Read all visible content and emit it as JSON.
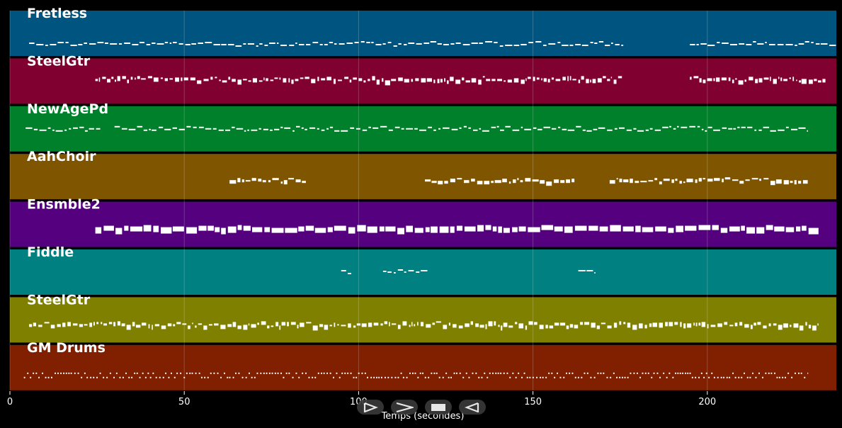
{
  "chart_data": {
    "type": "piano-roll",
    "title": "",
    "xlabel": "Temps (secondes)",
    "ylabel": "",
    "xlim": [
      0,
      237
    ],
    "xticks": [
      0,
      50,
      100,
      150,
      200
    ],
    "grid": true,
    "tracks": [
      {
        "name": "Fretless",
        "color": "#005580",
        "segments": [
          [
            5.5,
            176
          ],
          [
            195,
            228
          ],
          [
            228,
            237
          ]
        ],
        "style": "melody-low"
      },
      {
        "name": "SteelGtr",
        "color": "#80002f",
        "segments": [
          [
            24.5,
            176
          ],
          [
            195,
            227
          ],
          [
            227,
            234
          ]
        ],
        "style": "chords-mid"
      },
      {
        "name": "NewAgePd",
        "color": "#00802a",
        "segments": [
          [
            4.5,
            26
          ],
          [
            30,
            229
          ]
        ],
        "style": "melody-mid"
      },
      {
        "name": "AahChoir",
        "color": "#805500",
        "segments": [
          [
            63,
            85
          ],
          [
            119,
            162
          ],
          [
            172,
            229
          ]
        ],
        "style": "chords-high"
      },
      {
        "name": "Ensmble2",
        "color": "#55007f",
        "segments": [
          [
            24.5,
            232
          ]
        ],
        "style": "thick"
      },
      {
        "name": "Fiddle",
        "color": "#008080",
        "segments": [
          [
            95,
            98
          ],
          [
            107,
            120
          ],
          [
            163,
            168
          ]
        ],
        "style": "fiddle"
      },
      {
        "name": "SteelGtr",
        "color": "#808000",
        "segments": [
          [
            5.5,
            232
          ]
        ],
        "style": "chords-low"
      },
      {
        "name": "GM Drums",
        "color": "#802000",
        "segments": [
          [
            4,
            229
          ]
        ],
        "style": "drums"
      }
    ]
  },
  "controls": [
    {
      "name": "play-button",
      "icon": "play-icon"
    },
    {
      "name": "forward-button",
      "icon": "forward-icon"
    },
    {
      "name": "stop-button",
      "icon": "stop-icon"
    },
    {
      "name": "rewind-button",
      "icon": "rewind-icon"
    }
  ]
}
